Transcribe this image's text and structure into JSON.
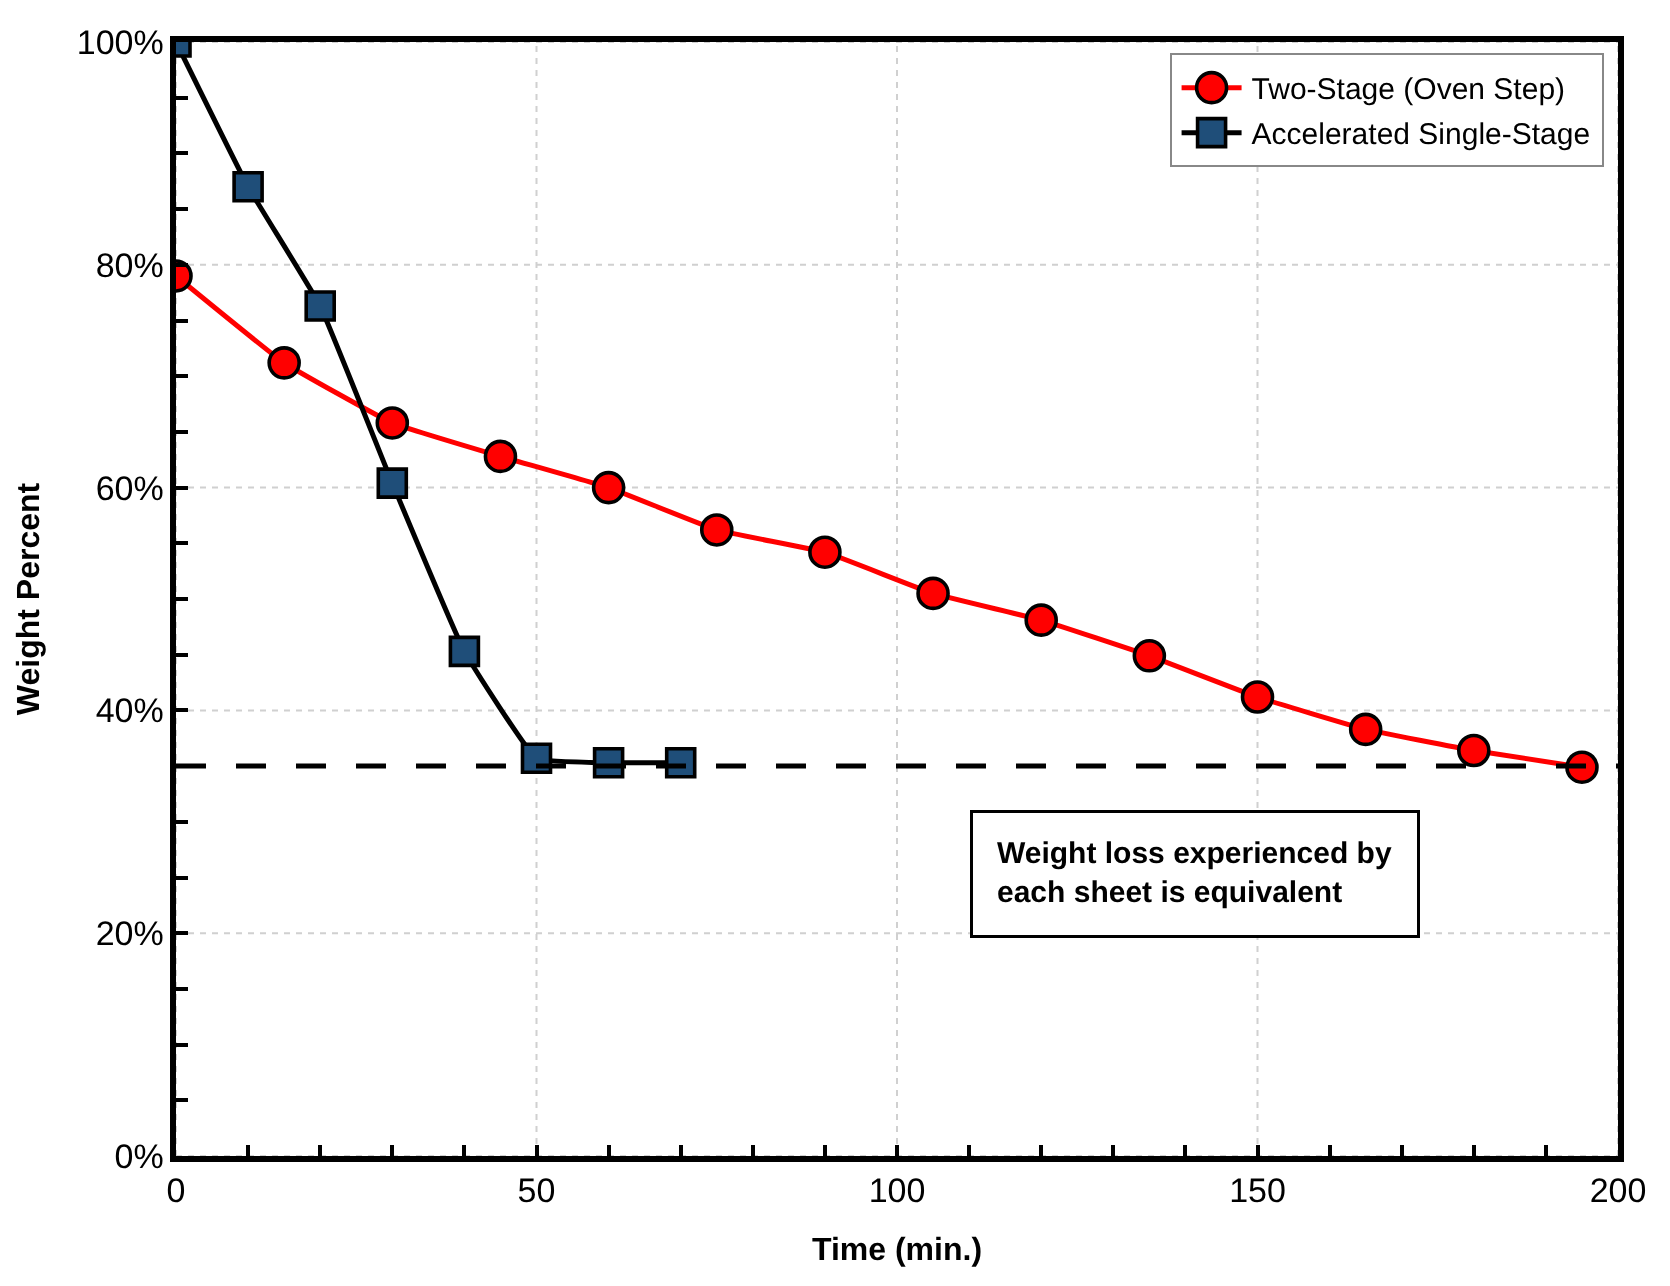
{
  "chart_data": {
    "type": "line",
    "xlabel": "Time (min.)",
    "ylabel": "Weight Percent",
    "xlim": [
      0,
      200
    ],
    "ylim": [
      0,
      100
    ],
    "xticks": [
      0,
      {
        "value": 10,
        "label": null
      },
      {
        "value": 20,
        "label": null
      },
      {
        "value": 30,
        "label": null
      },
      {
        "value": 40,
        "label": null
      },
      50,
      {
        "value": 60,
        "label": null
      },
      {
        "value": 70,
        "label": null
      },
      {
        "value": 80,
        "label": null
      },
      {
        "value": 90,
        "label": null
      },
      100,
      {
        "value": 110,
        "label": null
      },
      {
        "value": 120,
        "label": null
      },
      {
        "value": 130,
        "label": null
      },
      {
        "value": 140,
        "label": null
      },
      150,
      {
        "value": 160,
        "label": null
      },
      {
        "value": 170,
        "label": null
      },
      {
        "value": 180,
        "label": null
      },
      {
        "value": 190,
        "label": null
      },
      200
    ],
    "yticks": [
      {
        "value": 0,
        "label": "0%"
      },
      {
        "value": 5,
        "label": null
      },
      {
        "value": 10,
        "label": null
      },
      {
        "value": 15,
        "label": null
      },
      {
        "value": 20,
        "label": "20%"
      },
      {
        "value": 25,
        "label": null
      },
      {
        "value": 30,
        "label": null
      },
      {
        "value": 35,
        "label": null
      },
      {
        "value": 40,
        "label": "40%"
      },
      {
        "value": 45,
        "label": null
      },
      {
        "value": 50,
        "label": null
      },
      {
        "value": 55,
        "label": null
      },
      {
        "value": 60,
        "label": "60%"
      },
      {
        "value": 65,
        "label": null
      },
      {
        "value": 70,
        "label": null
      },
      {
        "value": 75,
        "label": null
      },
      {
        "value": 80,
        "label": "80%"
      },
      {
        "value": 85,
        "label": null
      },
      {
        "value": 90,
        "label": null
      },
      {
        "value": 95,
        "label": null
      },
      {
        "value": 100,
        "label": "100%"
      }
    ],
    "grid": true,
    "legend": "top right",
    "line_style": "solid",
    "series": [
      {
        "name": "Two-Stage (Oven Step)",
        "color": "#ff0000",
        "marker": "circle",
        "x": [
          0,
          15,
          30,
          45,
          60,
          75,
          90,
          105,
          120,
          135,
          150,
          165,
          180,
          195
        ],
        "values": [
          79,
          71.2,
          65.8,
          62.8,
          60,
          56.2,
          54.2,
          50.5,
          48.1,
          44.9,
          41.2,
          38.3,
          36.4,
          34.9
        ]
      },
      {
        "name": "Accelerated Single-Stage",
        "color": "#1f4e79",
        "marker": "square",
        "x": [
          0,
          10,
          20,
          30,
          40,
          50,
          60,
          70
        ],
        "values": [
          100,
          87,
          76.3,
          60.4,
          45.3,
          35.7,
          35.3,
          35.3
        ]
      }
    ],
    "ref_lines": [
      {
        "axis": "y",
        "value": 35,
        "color": "#000000",
        "line_style": "dashed"
      }
    ],
    "annotations": [
      "Weight loss experienced by each sheet is equivalent"
    ]
  }
}
